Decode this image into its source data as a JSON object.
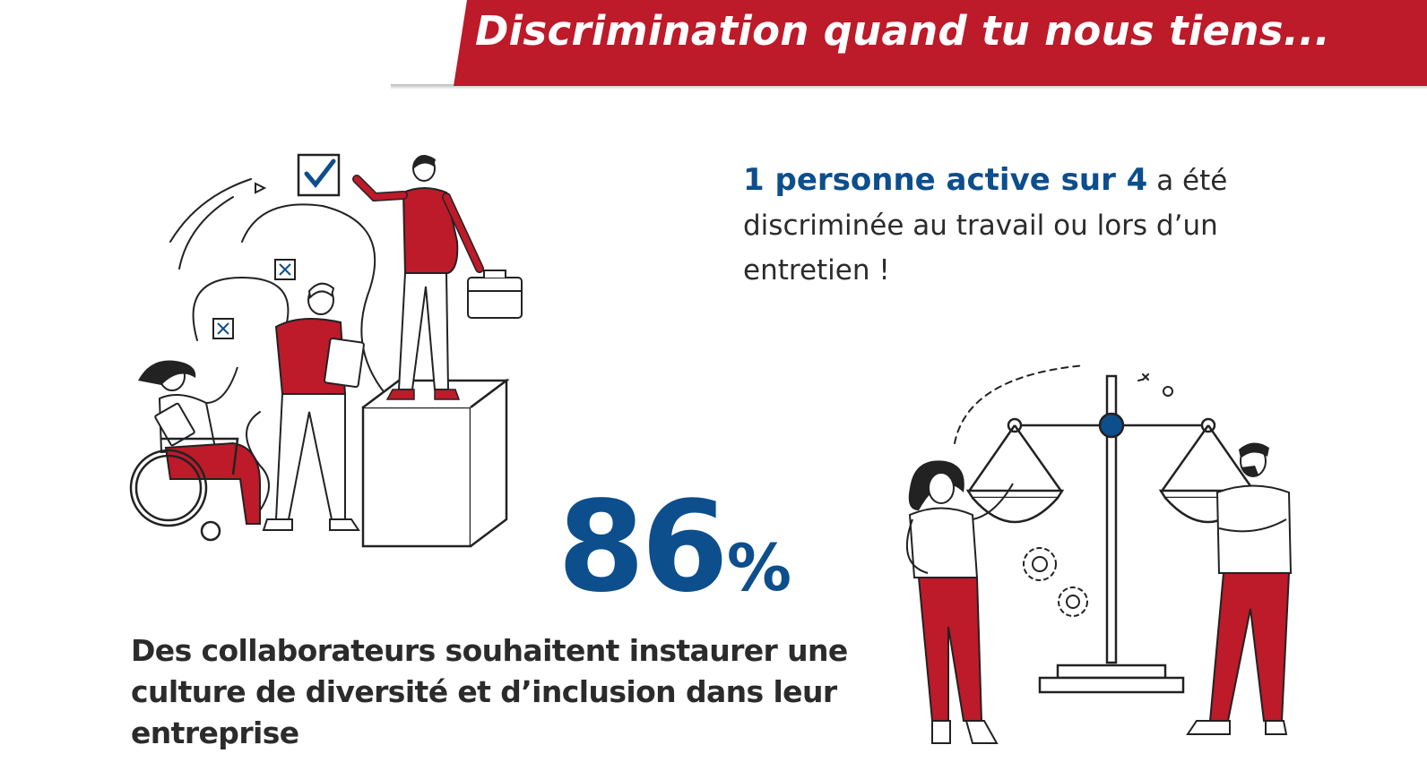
{
  "banner": {
    "title": "Discrimination quand tu nous tiens..."
  },
  "stat_one": {
    "highlight": "1 personne active sur 4",
    "text": " a été discriminée au travail ou lors d’un entretien !"
  },
  "stat_two": {
    "number": "86",
    "percent": "%",
    "text": "Des collaborateurs souhaitent instaurer une culture de diversité et d’inclusion dans leur entreprise"
  },
  "colors": {
    "accent_red": "#bd1a2a",
    "accent_blue": "#0d4e8c",
    "text": "#2b2b2b"
  },
  "icons": [
    "checkbox-checked-icon",
    "checkbox-crossed-icon",
    "briefcase-icon",
    "clipboard-icon",
    "wheelchair-icon",
    "balance-scale-icon",
    "gear-icon"
  ]
}
